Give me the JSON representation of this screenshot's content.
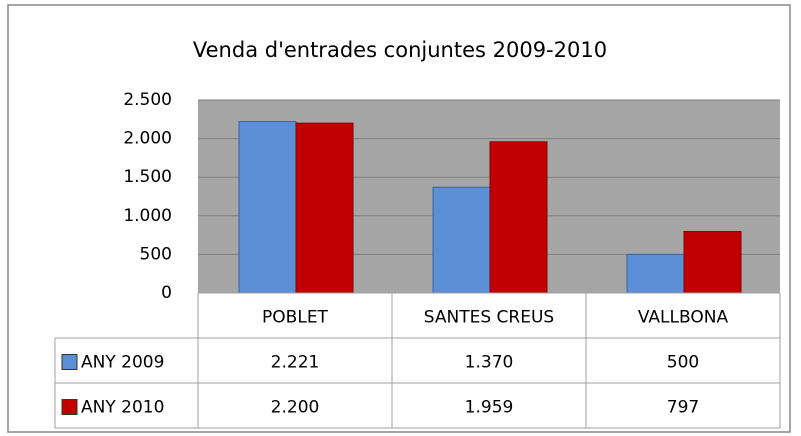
{
  "chart_data": {
    "type": "bar",
    "title": "Venda d'entrades conjuntes 2009-2010",
    "categories": [
      "POBLET",
      "SANTES CREUS",
      "VALLBONA"
    ],
    "series": [
      {
        "name": "ANY 2009",
        "color": "#5b8fd6",
        "values": [
          2221,
          1370,
          500
        ],
        "value_labels": [
          "2.221",
          "1.370",
          "500"
        ]
      },
      {
        "name": "ANY 2010",
        "color": "#c00000",
        "values": [
          2200,
          1959,
          797
        ],
        "value_labels": [
          "2.200",
          "1.959",
          "797"
        ]
      }
    ],
    "ylim": [
      0,
      2500
    ],
    "yticks": [
      0,
      500,
      {
        "value": 1000,
        "label": "1.000"
      },
      {
        "value": 1500,
        "label": "1.500"
      },
      {
        "value": 2000,
        "label": "2.000"
      },
      {
        "value": 2500,
        "label": "2.500"
      }
    ],
    "grid": true
  }
}
